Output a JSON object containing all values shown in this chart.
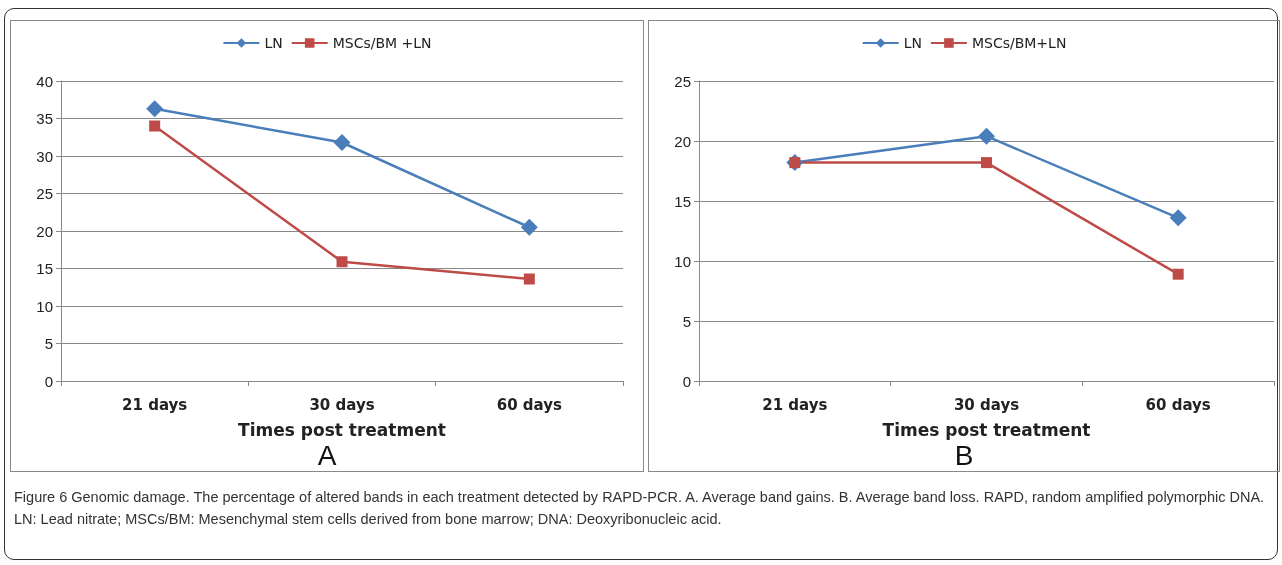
{
  "chart_data": [
    {
      "type": "line",
      "categories": [
        "21 days",
        "30 days",
        "60 days"
      ],
      "xlabel": "Times post treatment",
      "ylim": [
        0,
        40
      ],
      "yticks": [
        0,
        5,
        10,
        15,
        20,
        25,
        30,
        35,
        40
      ],
      "grid": "y",
      "legend": "top",
      "annotations": [
        "A"
      ],
      "series": [
        {
          "name": "LN",
          "color": "#4a7ebb",
          "marker": "diamond",
          "values": [
            36.3,
            31.8,
            20.5
          ]
        },
        {
          "name": "MSCs/BM +LN",
          "color": "#be4b48",
          "marker": "square",
          "values": [
            34,
            15.9,
            13.6
          ]
        }
      ]
    },
    {
      "type": "line",
      "categories": [
        "21 days",
        "30 days",
        "60 days"
      ],
      "xlabel": "Times post treatment",
      "ylim": [
        0,
        25
      ],
      "yticks": [
        0,
        5,
        10,
        15,
        20,
        25
      ],
      "grid": "y",
      "legend": "top",
      "annotations": [
        "B",
        "Figure 6 Genomic damage. The percentage of altered bands in each treatment detected by RAPD-PCR. A. Average band gains. B. Average band loss. RAPD, random amplified polymorphic DNA. LN: Lead nitrate; MSCs/BM: Mesenchymal stem cells derived from bone marrow; DNA: Deoxyribonucleic acid."
      ],
      "series": [
        {
          "name": "LN",
          "color": "#4a7ebb",
          "marker": "diamond",
          "values": [
            18.2,
            20.4,
            13.6
          ]
        },
        {
          "name": "MSCs/BM+LN",
          "color": "#be4b48",
          "marker": "square",
          "values": [
            18.2,
            18.2,
            8.9
          ]
        }
      ]
    }
  ]
}
